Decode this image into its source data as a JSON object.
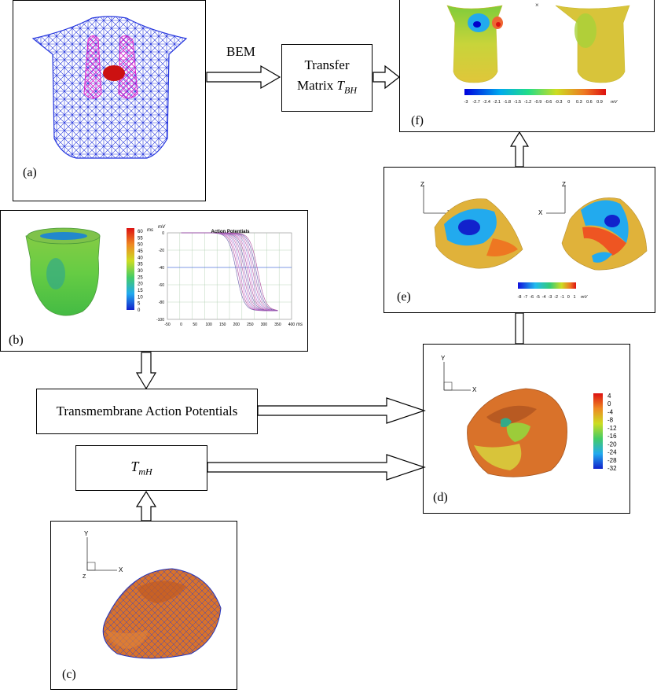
{
  "panels": {
    "a": {
      "label": "(a)"
    },
    "b": {
      "label": "(b)",
      "unit": "ms",
      "scale_ticks": [
        "60",
        "55",
        "50",
        "45",
        "40",
        "35",
        "30",
        "25",
        "20",
        "15",
        "10",
        "5",
        "0"
      ],
      "ap_title": "Action Potentials",
      "ap_yunit": "mV",
      "ap_xunit": "ms",
      "ap_yticks": [
        "0",
        "-20",
        "-40",
        "-60",
        "-80",
        "-100"
      ],
      "ap_xticks": [
        "-50",
        "0",
        "50",
        "100",
        "150",
        "200",
        "250",
        "300",
        "350",
        "400"
      ]
    },
    "c": {
      "label": "(c)",
      "axis_y": "Y",
      "axis_x": "X",
      "axis_z": "Z"
    },
    "d": {
      "label": "(d)",
      "axis_y": "Y",
      "axis_x": "X",
      "scale_ticks": [
        "4",
        "0",
        "-4",
        "-8",
        "-12",
        "-16",
        "-20",
        "-24",
        "-28",
        "-32"
      ]
    },
    "e": {
      "label": "(e)",
      "axis_z": "Z",
      "axis_x": "X",
      "scale_ticks": [
        "-8",
        "-7",
        "-6",
        "-5",
        "-4",
        "-3",
        "-2",
        "-1",
        "0",
        "1"
      ],
      "unit": "mV"
    },
    "f": {
      "label": "(f)",
      "scale_ticks": [
        "-3",
        "-2.7",
        "-2.4",
        "-2.1",
        "-1.8",
        "-1.5",
        "-1.2",
        "-0.9",
        "-0.6",
        "-0.3",
        "0",
        "0.3",
        "0.6",
        "0.9"
      ],
      "unit": "mV"
    }
  },
  "boxes": {
    "transfer": {
      "line1": "Transfer",
      "line2": "Matrix ",
      "sym": "T",
      "sub": "BH"
    },
    "tap": {
      "text": "Transmembrane Action Potentials"
    },
    "tmh": {
      "sym": "T",
      "sub": "mH"
    }
  },
  "bem_label": "BEM",
  "colors": {
    "mesh_blue": "#2233dd",
    "mesh_magenta": "#dd22cc",
    "heart_red": "#cc1111",
    "surface_orange": "#d9722a",
    "surface_yellow": "#d8c43a",
    "surface_green": "#7fcc3a"
  }
}
